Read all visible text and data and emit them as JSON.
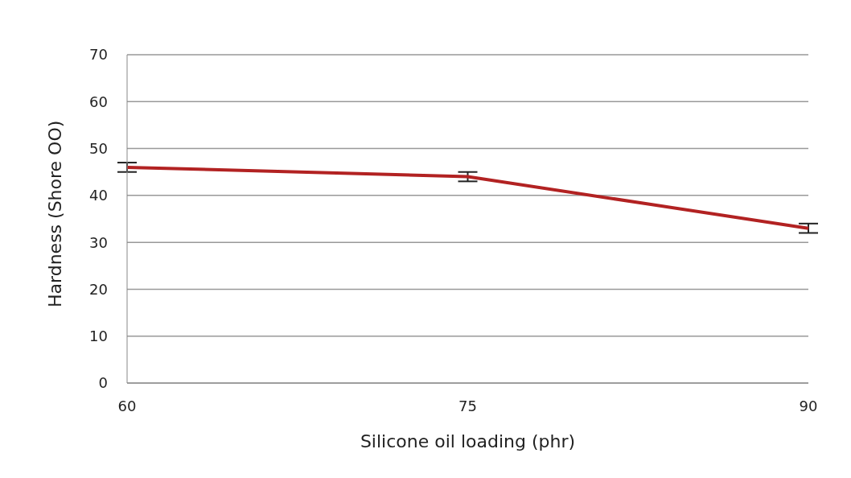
{
  "chart_data": {
    "type": "line",
    "xlabel": "Silicone oil loading (phr)",
    "ylabel": "Hardness (Shore OO)",
    "categories": [
      "60",
      "75",
      "90"
    ],
    "series": [
      {
        "color": "#b22222",
        "values": [
          46,
          44,
          33
        ],
        "errors": [
          1,
          1,
          1
        ]
      }
    ],
    "ylim": [
      0,
      70
    ],
    "yticks": [
      0,
      10,
      20,
      30,
      40,
      50,
      60,
      70
    ],
    "grid": "y",
    "marker": "none",
    "line_style": "solid"
  }
}
